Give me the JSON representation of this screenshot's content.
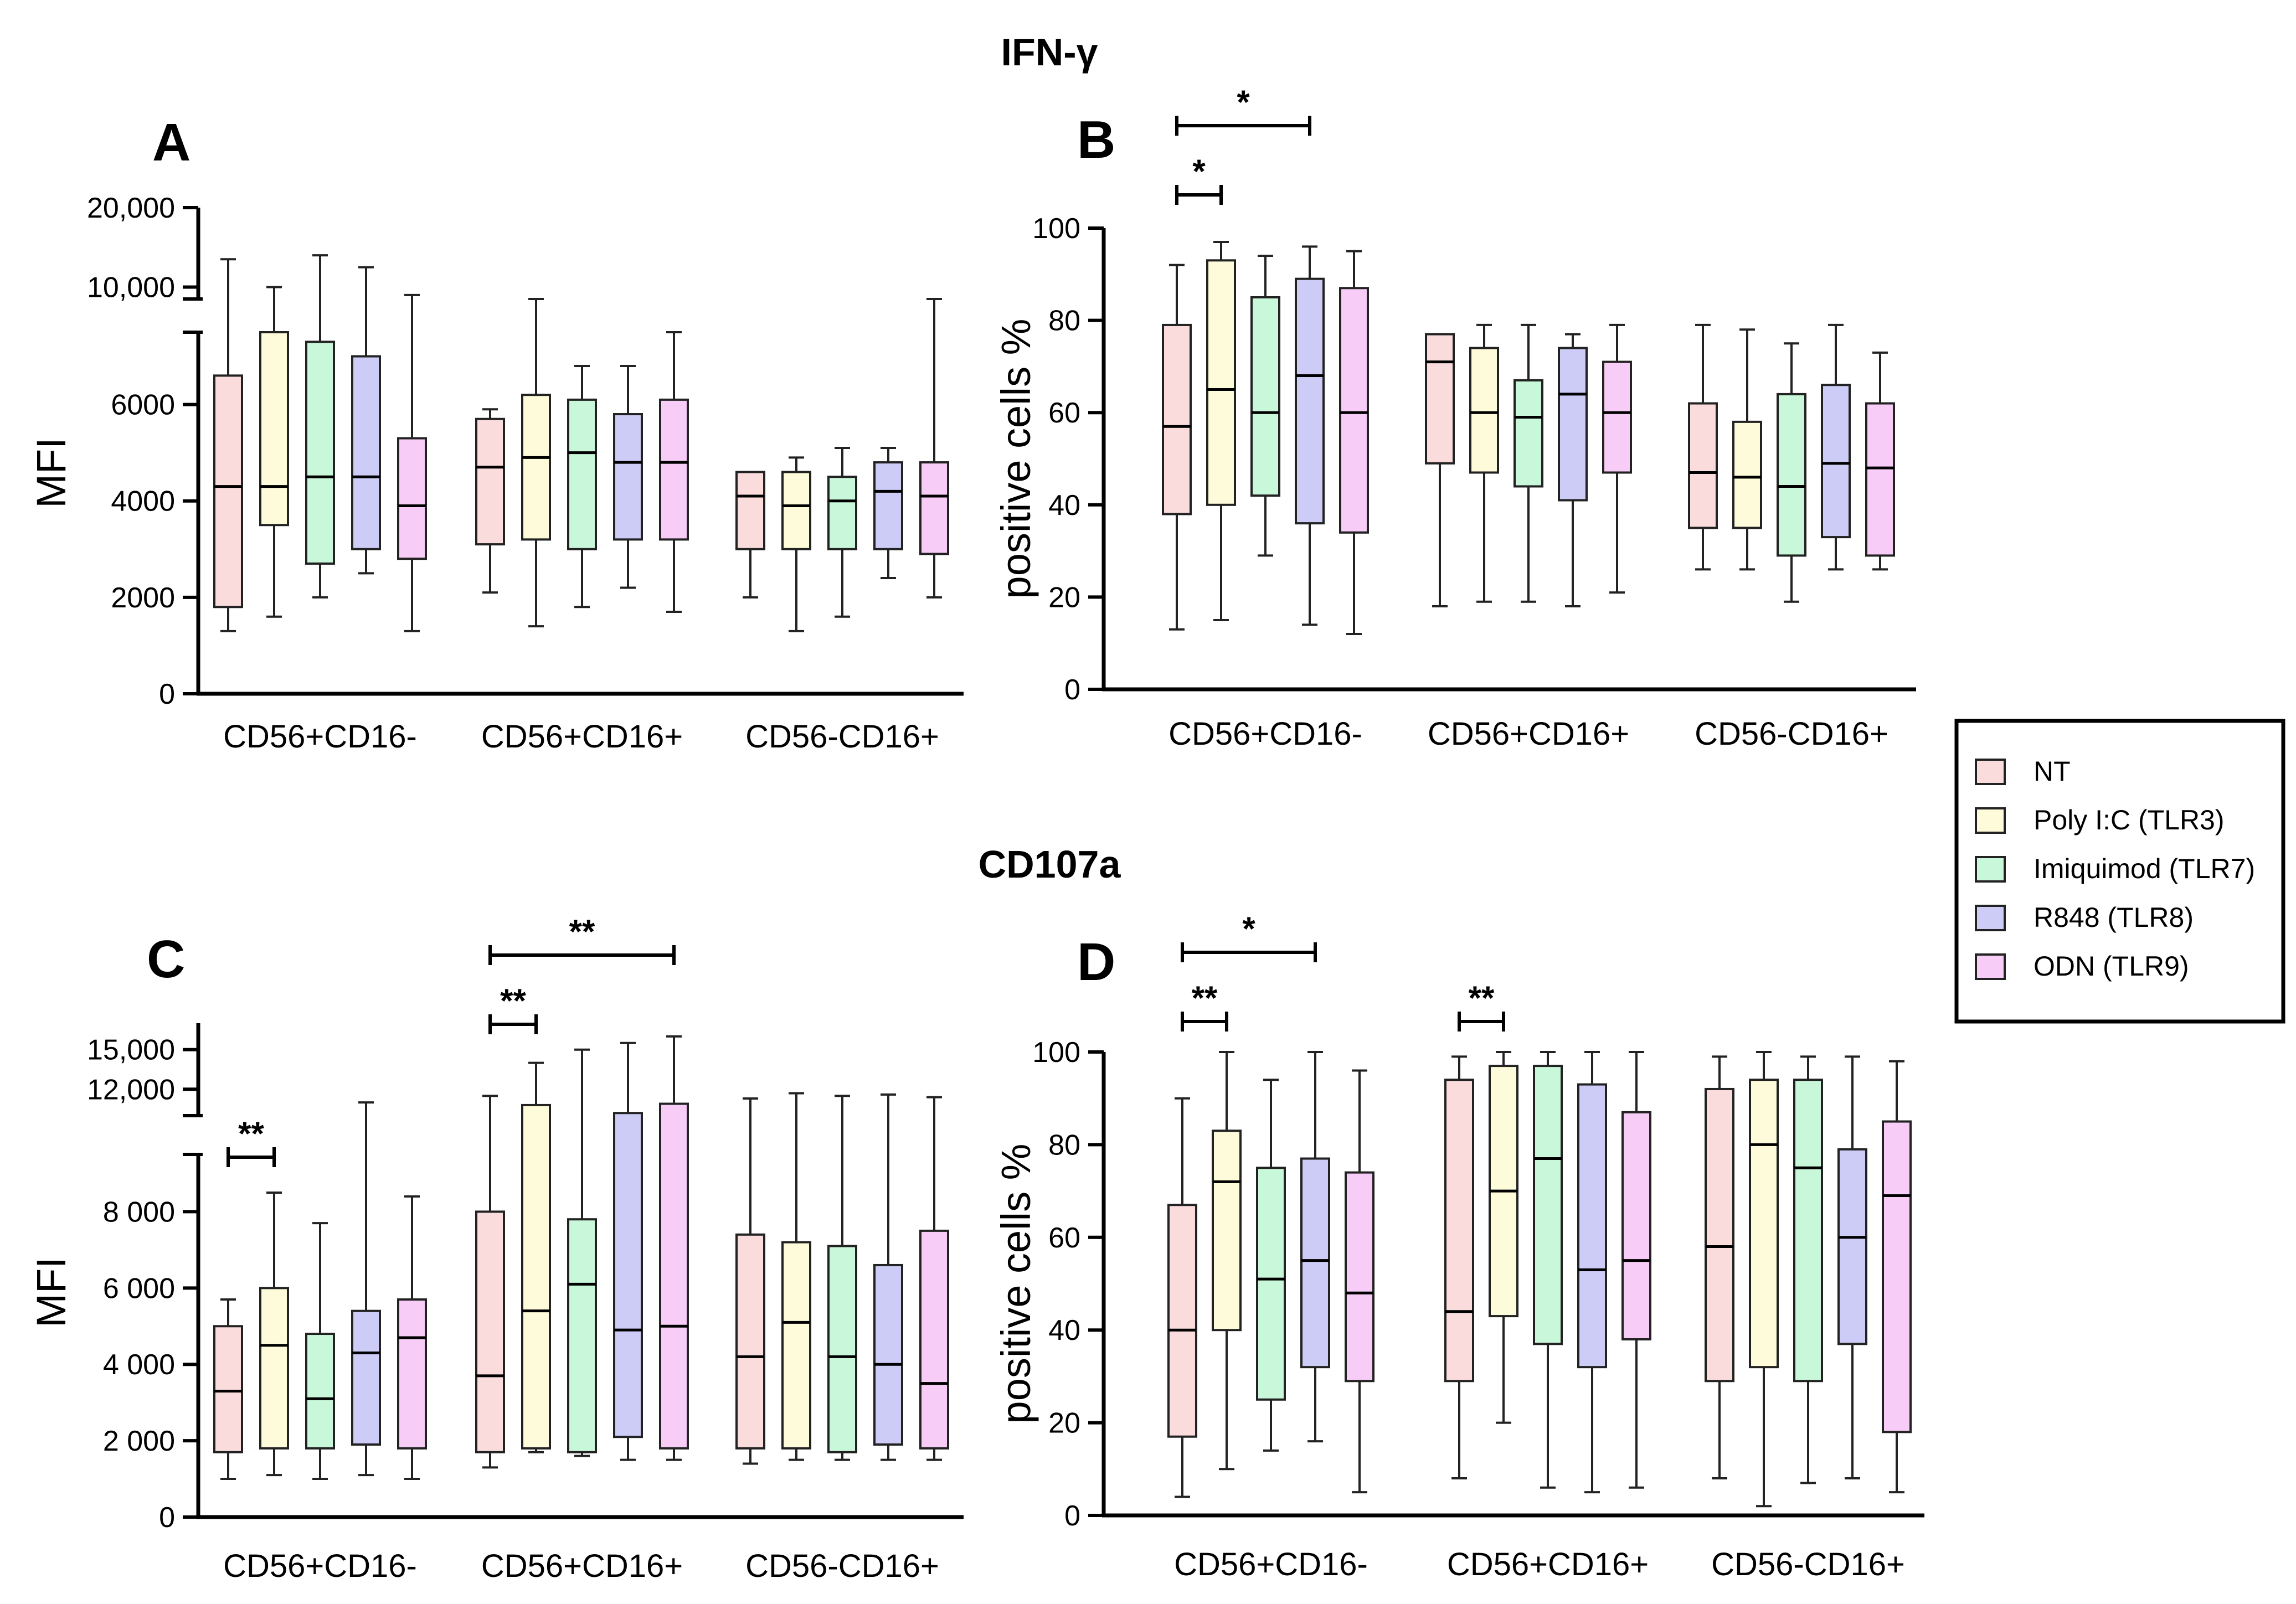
{
  "figure": {
    "section_titles": [
      "IFN-γ",
      "CD107a"
    ]
  },
  "legend": {
    "entries": [
      {
        "label": "NT",
        "color": "#fadcdc"
      },
      {
        "label": "Poly I:C (TLR3)",
        "color": "#fdfbd9"
      },
      {
        "label": "Imiquimod (TLR7)",
        "color": "#c9f7d9"
      },
      {
        "label": "R848 (TLR8)",
        "color": "#ccccf7"
      },
      {
        "label": "ODN (TLR9)",
        "color": "#f7cdf7"
      }
    ]
  },
  "chart_data": [
    {
      "panel": "A",
      "section": "IFN-γ",
      "type": "box",
      "ylabel": "MFI",
      "categories": [
        "CD56+CD16-",
        "CD56+CD16+",
        "CD56-CD16+"
      ],
      "series_names": [
        "NT",
        "Poly I:C (TLR3)",
        "Imiquimod (TLR7)",
        "R848 (TLR8)",
        "ODN (TLR9)"
      ],
      "y_axis_broken": true,
      "y_lower_range": [
        0,
        7500
      ],
      "y_lower_ticks": [
        0,
        2000,
        4000,
        6000
      ],
      "y_lower_tick_labels": [
        "0",
        "2000",
        "4000",
        "6000"
      ],
      "y_upper_range": [
        8500,
        20000
      ],
      "y_upper_ticks": [
        10000,
        20000
      ],
      "y_upper_tick_labels": [
        "10,000",
        "20,000"
      ],
      "groups": [
        [
          {
            "min": 1300,
            "q1": 1800,
            "median": 4300,
            "q3": 6600,
            "max": 13500
          },
          {
            "min": 1600,
            "q1": 3500,
            "median": 4300,
            "q3": 7500,
            "max": 10000
          },
          {
            "min": 2000,
            "q1": 2700,
            "median": 4500,
            "q3": 7300,
            "max": 14000
          },
          {
            "min": 2500,
            "q1": 3000,
            "median": 4500,
            "q3": 7000,
            "max": 12500
          },
          {
            "min": 1300,
            "q1": 2800,
            "median": 3900,
            "q3": 5300,
            "max": 9000
          }
        ],
        [
          {
            "min": 2100,
            "q1": 3100,
            "median": 4700,
            "q3": 5700,
            "max": 5900
          },
          {
            "min": 1400,
            "q1": 3200,
            "median": 4900,
            "q3": 6200,
            "max": 8500
          },
          {
            "min": 1800,
            "q1": 3000,
            "median": 5000,
            "q3": 6100,
            "max": 6800
          },
          {
            "min": 2200,
            "q1": 3200,
            "median": 4800,
            "q3": 5800,
            "max": 6800
          },
          {
            "min": 1700,
            "q1": 3200,
            "median": 4800,
            "q3": 6100,
            "max": 7500
          }
        ],
        [
          {
            "min": 2000,
            "q1": 3000,
            "median": 4100,
            "q3": 4600,
            "max": 4600
          },
          {
            "min": 1300,
            "q1": 3000,
            "median": 3900,
            "q3": 4600,
            "max": 4900
          },
          {
            "min": 1600,
            "q1": 3000,
            "median": 4000,
            "q3": 4500,
            "max": 5100
          },
          {
            "min": 2400,
            "q1": 3000,
            "median": 4200,
            "q3": 4800,
            "max": 5100
          },
          {
            "min": 2000,
            "q1": 2900,
            "median": 4100,
            "q3": 4800,
            "max": 8500
          }
        ]
      ],
      "significance": []
    },
    {
      "panel": "B",
      "section": "IFN-γ",
      "type": "box",
      "ylabel": "positive cells %",
      "categories": [
        "CD56+CD16-",
        "CD56+CD16+",
        "CD56-CD16+"
      ],
      "series_names": [
        "NT",
        "Poly I:C (TLR3)",
        "Imiquimod (TLR7)",
        "R848 (TLR8)",
        "ODN (TLR9)"
      ],
      "ylim": [
        0,
        100
      ],
      "yticks": [
        0,
        20,
        40,
        60,
        80,
        100
      ],
      "y_tick_labels": [
        "0",
        "20",
        "40",
        "60",
        "80",
        "100"
      ],
      "groups": [
        [
          {
            "min": 13,
            "q1": 38,
            "median": 57,
            "q3": 79,
            "max": 92
          },
          {
            "min": 15,
            "q1": 40,
            "median": 65,
            "q3": 93,
            "max": 97
          },
          {
            "min": 29,
            "q1": 42,
            "median": 60,
            "q3": 85,
            "max": 94
          },
          {
            "min": 14,
            "q1": 36,
            "median": 68,
            "q3": 89,
            "max": 96
          },
          {
            "min": 12,
            "q1": 34,
            "median": 60,
            "q3": 87,
            "max": 95
          }
        ],
        [
          {
            "min": 18,
            "q1": 49,
            "median": 71,
            "q3": 77,
            "max": 77
          },
          {
            "min": 19,
            "q1": 47,
            "median": 60,
            "q3": 74,
            "max": 79
          },
          {
            "min": 19,
            "q1": 44,
            "median": 59,
            "q3": 67,
            "max": 79
          },
          {
            "min": 18,
            "q1": 41,
            "median": 64,
            "q3": 74,
            "max": 77
          },
          {
            "min": 21,
            "q1": 47,
            "median": 60,
            "q3": 71,
            "max": 79
          }
        ],
        [
          {
            "min": 26,
            "q1": 35,
            "median": 47,
            "q3": 62,
            "max": 79
          },
          {
            "min": 26,
            "q1": 35,
            "median": 46,
            "q3": 58,
            "max": 78
          },
          {
            "min": 19,
            "q1": 29,
            "median": 44,
            "q3": 64,
            "max": 75
          },
          {
            "min": 26,
            "q1": 33,
            "median": 49,
            "q3": 66,
            "max": 79
          },
          {
            "min": 26,
            "q1": 29,
            "median": 48,
            "q3": 62,
            "max": 73
          }
        ]
      ],
      "significance": [
        {
          "group": 0,
          "from": 0,
          "to": 1,
          "label": "*"
        },
        {
          "group": 0,
          "from": 0,
          "to": 3,
          "label": "*"
        }
      ]
    },
    {
      "panel": "C",
      "section": "CD107a",
      "type": "box",
      "ylabel": "MFI",
      "categories": [
        "CD56+CD16-",
        "CD56+CD16+",
        "CD56-CD16+"
      ],
      "series_names": [
        "NT",
        "Poly I:C (TLR3)",
        "Imiquimod (TLR7)",
        "R848 (TLR8)",
        "ODN (TLR9)"
      ],
      "y_axis_broken": true,
      "y_lower_range": [
        0,
        9500
      ],
      "y_lower_ticks": [
        0,
        2000,
        4000,
        6000,
        8000
      ],
      "y_lower_tick_labels": [
        "0",
        "2 000",
        "4 000",
        "6 000",
        "8 000"
      ],
      "y_upper_range": [
        10000,
        17000
      ],
      "y_upper_ticks": [
        12000,
        15000
      ],
      "y_upper_tick_labels": [
        "12,000",
        "15,000"
      ],
      "groups": [
        [
          {
            "min": 1000,
            "q1": 1700,
            "median": 3300,
            "q3": 5000,
            "max": 5700
          },
          {
            "min": 1100,
            "q1": 1800,
            "median": 4500,
            "q3": 6000,
            "max": 8500
          },
          {
            "min": 1000,
            "q1": 1800,
            "median": 3100,
            "q3": 4800,
            "max": 7700
          },
          {
            "min": 1100,
            "q1": 1900,
            "median": 4300,
            "q3": 5400,
            "max": 11000
          },
          {
            "min": 1000,
            "q1": 1800,
            "median": 4700,
            "q3": 5700,
            "max": 8400
          }
        ],
        [
          {
            "min": 1300,
            "q1": 1700,
            "median": 3700,
            "q3": 8000,
            "max": 11500
          },
          {
            "min": 1700,
            "q1": 1800,
            "median": 5400,
            "q3": 10800,
            "max": 14000
          },
          {
            "min": 1600,
            "q1": 1700,
            "median": 6100,
            "q3": 7800,
            "max": 15000
          },
          {
            "min": 1500,
            "q1": 2100,
            "median": 4900,
            "q3": 10200,
            "max": 15500
          },
          {
            "min": 1500,
            "q1": 1800,
            "median": 5000,
            "q3": 10900,
            "max": 16000
          }
        ],
        [
          {
            "min": 1400,
            "q1": 1800,
            "median": 4200,
            "q3": 7400,
            "max": 11300
          },
          {
            "min": 1500,
            "q1": 1800,
            "median": 5100,
            "q3": 7200,
            "max": 11700
          },
          {
            "min": 1500,
            "q1": 1700,
            "median": 4200,
            "q3": 7100,
            "max": 11500
          },
          {
            "min": 1500,
            "q1": 1900,
            "median": 4000,
            "q3": 6600,
            "max": 11600
          },
          {
            "min": 1500,
            "q1": 1800,
            "median": 3500,
            "q3": 7500,
            "max": 11400
          }
        ]
      ],
      "significance": [
        {
          "group": 0,
          "from": 0,
          "to": 1,
          "label": "**"
        },
        {
          "group": 1,
          "from": 0,
          "to": 1,
          "label": "**"
        },
        {
          "group": 1,
          "from": 0,
          "to": 4,
          "label": "**"
        }
      ]
    },
    {
      "panel": "D",
      "section": "CD107a",
      "type": "box",
      "ylabel": "positive cells %",
      "categories": [
        "CD56+CD16-",
        "CD56+CD16+",
        "CD56-CD16+"
      ],
      "series_names": [
        "NT",
        "Poly I:C (TLR3)",
        "Imiquimod (TLR7)",
        "R848 (TLR8)",
        "ODN (TLR9)"
      ],
      "ylim": [
        0,
        100
      ],
      "yticks": [
        0,
        20,
        40,
        60,
        80,
        100
      ],
      "y_tick_labels": [
        "0",
        "20",
        "40",
        "60",
        "80",
        "100"
      ],
      "groups": [
        [
          {
            "min": 4,
            "q1": 17,
            "median": 40,
            "q3": 67,
            "max": 90
          },
          {
            "min": 10,
            "q1": 40,
            "median": 72,
            "q3": 83,
            "max": 100
          },
          {
            "min": 14,
            "q1": 25,
            "median": 51,
            "q3": 75,
            "max": 94
          },
          {
            "min": 16,
            "q1": 32,
            "median": 55,
            "q3": 77,
            "max": 100
          },
          {
            "min": 5,
            "q1": 29,
            "median": 48,
            "q3": 74,
            "max": 96
          }
        ],
        [
          {
            "min": 8,
            "q1": 29,
            "median": 44,
            "q3": 94,
            "max": 99
          },
          {
            "min": 20,
            "q1": 43,
            "median": 70,
            "q3": 97,
            "max": 100
          },
          {
            "min": 6,
            "q1": 37,
            "median": 77,
            "q3": 97,
            "max": 100
          },
          {
            "min": 5,
            "q1": 32,
            "median": 53,
            "q3": 93,
            "max": 100
          },
          {
            "min": 6,
            "q1": 38,
            "median": 55,
            "q3": 87,
            "max": 100
          }
        ],
        [
          {
            "min": 8,
            "q1": 29,
            "median": 58,
            "q3": 92,
            "max": 99
          },
          {
            "min": 2,
            "q1": 32,
            "median": 80,
            "q3": 94,
            "max": 100
          },
          {
            "min": 7,
            "q1": 29,
            "median": 75,
            "q3": 94,
            "max": 99
          },
          {
            "min": 8,
            "q1": 37,
            "median": 60,
            "q3": 79,
            "max": 99
          },
          {
            "min": 5,
            "q1": 18,
            "median": 69,
            "q3": 85,
            "max": 98
          }
        ]
      ],
      "significance": [
        {
          "group": 0,
          "from": 0,
          "to": 1,
          "label": "**"
        },
        {
          "group": 0,
          "from": 0,
          "to": 3,
          "label": "*"
        },
        {
          "group": 1,
          "from": 0,
          "to": 1,
          "label": "**"
        }
      ]
    }
  ]
}
